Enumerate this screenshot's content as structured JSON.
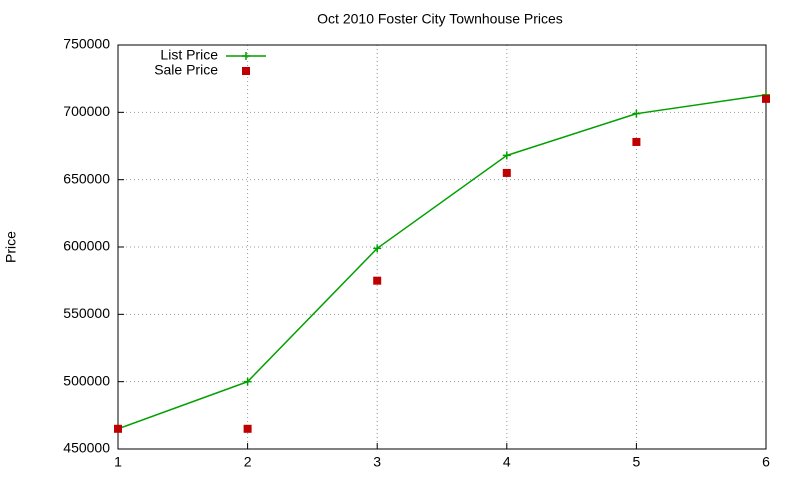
{
  "chart_data": {
    "type": "line",
    "title": "Oct 2010 Foster City Townhouse Prices",
    "y_label": "Price",
    "x": [
      1,
      2,
      3,
      4,
      5,
      6
    ],
    "series": [
      {
        "name": "List Price",
        "color": "#00a000",
        "style": "linespoints",
        "values": [
          465000,
          500000,
          599000,
          668000,
          699000,
          713000
        ]
      },
      {
        "name": "Sale Price",
        "color": "#c00000",
        "style": "points",
        "values": [
          465000,
          465000,
          575000,
          655000,
          678000,
          710000
        ]
      }
    ],
    "xlim": [
      1,
      6
    ],
    "xticks": [
      1,
      2,
      3,
      4,
      5,
      6
    ],
    "ylim": [
      450000,
      750000
    ],
    "yticks": [
      450000,
      500000,
      550000,
      600000,
      650000,
      700000,
      750000
    ],
    "grid": true,
    "legend": "top-left"
  }
}
